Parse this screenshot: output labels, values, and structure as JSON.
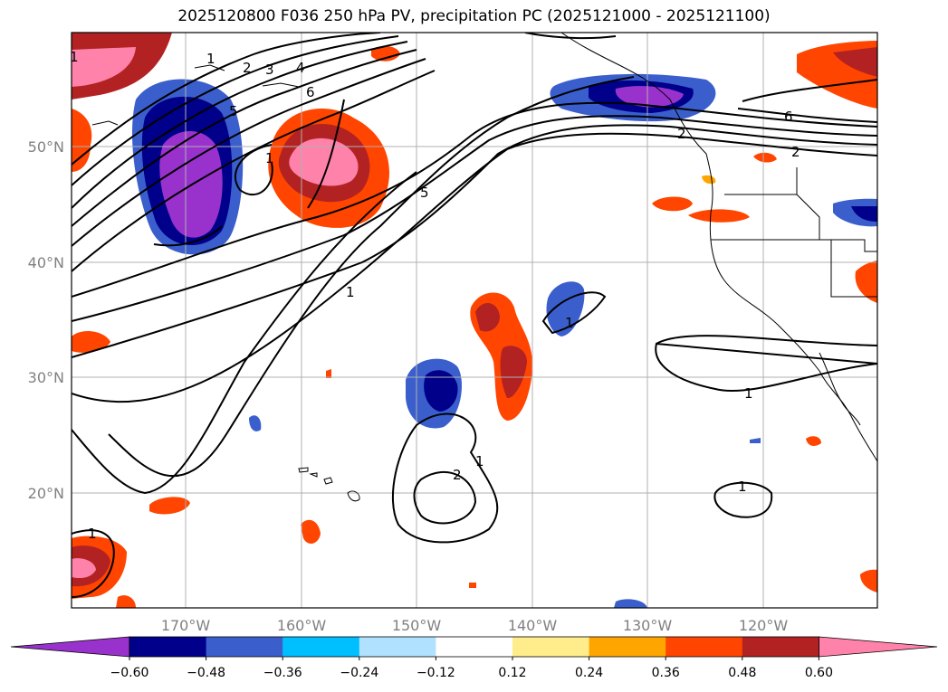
{
  "title": "2025120800 F036 250 hPa PV, precipitation PC (2025121000 - 2025121100)",
  "lat_labels": [
    "50°N",
    "40°N",
    "30°N",
    "20°N"
  ],
  "lon_labels": [
    "170°W",
    "160°W",
    "150°W",
    "140°W",
    "130°W",
    "120°W"
  ],
  "colorbar": {
    "ticks": [
      "−0.60",
      "−0.48",
      "−0.36",
      "−0.24",
      "−0.12",
      "0.12",
      "0.24",
      "0.36",
      "0.48",
      "0.60"
    ],
    "colors": [
      "#9932cc",
      "#00008b",
      "#3a5fcd",
      "#00bfff",
      "#b0e2ff",
      "#ffffff",
      "#ffec8b",
      "#ffa500",
      "#ff4500",
      "#b22222",
      "#ff82ab"
    ]
  },
  "contour_labels": [
    "1",
    "2",
    "3",
    "4",
    "5",
    "6",
    "5",
    "1",
    "1",
    "1",
    "2",
    "1",
    "6",
    "2",
    "1",
    "1",
    "1",
    "2"
  ]
}
